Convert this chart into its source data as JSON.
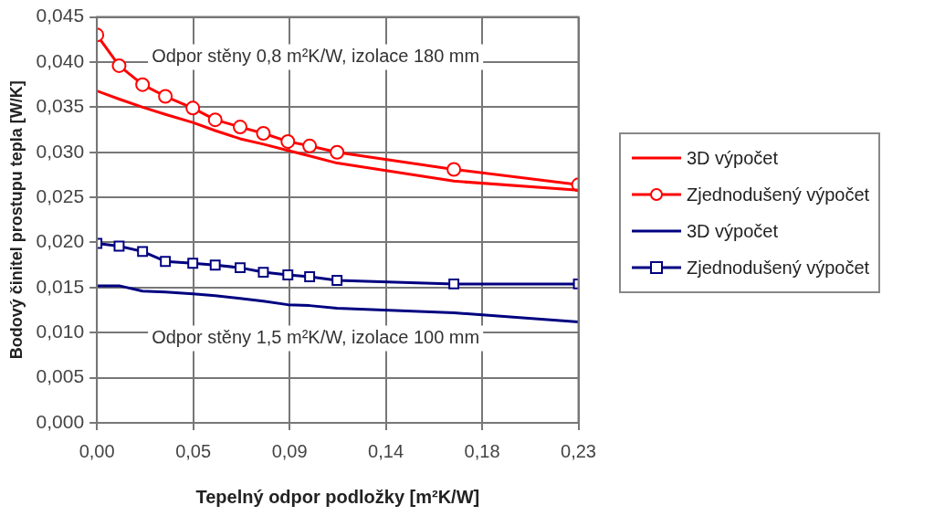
{
  "chart_data": {
    "type": "line",
    "xlabel": "Tepelný odpor podložky [m²K/W]",
    "ylabel": "Bodový činitel prostupu tepla [W/K]",
    "annotations": [
      "Odpor stěny 0,8 m²K/W, izolace 180 mm",
      "Odpor stěny 1,5 m²K/W, izolace 100 mm"
    ],
    "x": [
      0,
      0.0106,
      0.0218,
      0.0327,
      0.0458,
      0.0565,
      0.0684,
      0.0795,
      0.0912,
      0.1016,
      0.1147,
      0.1705,
      0.23
    ],
    "series": [
      {
        "name": "3D výpočet",
        "color": "#ff0000",
        "marker": "none",
        "values": [
          0.0368,
          0.0359,
          0.035,
          0.0342,
          0.0333,
          0.0324,
          0.0315,
          0.0309,
          0.0302,
          0.0296,
          0.0288,
          0.0268,
          0.0258
        ]
      },
      {
        "name": "Zjednodušený výpočet",
        "color": "#ff0000",
        "marker": "circle",
        "values": [
          0.043,
          0.0396,
          0.0375,
          0.0362,
          0.0349,
          0.0336,
          0.0328,
          0.0321,
          0.0312,
          0.0307,
          0.03,
          0.0281,
          0.0264
        ]
      },
      {
        "name": "3D výpočet",
        "color": "#000080",
        "marker": "none",
        "values": [
          0.0152,
          0.0152,
          0.0146,
          0.0145,
          0.0143,
          0.0141,
          0.0138,
          0.0135,
          0.0131,
          0.013,
          0.0127,
          0.0122,
          0.0112
        ]
      },
      {
        "name": "Zjednodušený výpočet",
        "color": "#000080",
        "marker": "square",
        "values": [
          0.0199,
          0.0196,
          0.019,
          0.0179,
          0.0177,
          0.0175,
          0.0172,
          0.0167,
          0.0164,
          0.0162,
          0.0158,
          0.0154,
          0.0154
        ]
      }
    ],
    "xlim": [
      0,
      0.23
    ],
    "xticks": [
      {
        "value": 0,
        "label": "0,00"
      },
      {
        "value": 0.046,
        "label": "0,05"
      },
      {
        "value": 0.092,
        "label": "0,09"
      },
      {
        "value": 0.138,
        "label": "0,14"
      },
      {
        "value": 0.184,
        "label": "0,18"
      },
      {
        "value": 0.23,
        "label": "0,23"
      }
    ],
    "ylim": [
      0,
      0.045
    ],
    "yticks": [
      {
        "value": 0,
        "label": "0,000"
      },
      {
        "value": 0.005,
        "label": "0,005"
      },
      {
        "value": 0.01,
        "label": "0,010"
      },
      {
        "value": 0.015,
        "label": "0,015"
      },
      {
        "value": 0.02,
        "label": "0,020"
      },
      {
        "value": 0.025,
        "label": "0,025"
      },
      {
        "value": 0.03,
        "label": "0,030"
      },
      {
        "value": 0.035,
        "label": "0,035"
      },
      {
        "value": 0.04,
        "label": "0,040"
      },
      {
        "value": 0.045,
        "label": "0,045"
      }
    ],
    "grid": true,
    "legend": "right",
    "line_style": "solid"
  }
}
